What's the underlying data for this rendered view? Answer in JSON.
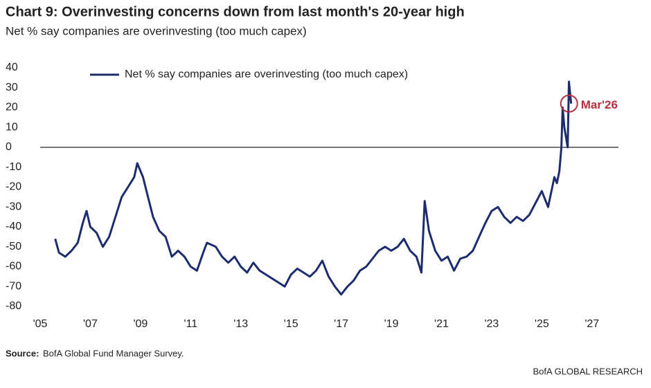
{
  "chart_data": {
    "type": "line",
    "title": "Chart 9: Overinvesting concerns down from last month's 20-year high",
    "subtitle": "Net % say companies are overinvesting (too much capex)",
    "source_label": "Source:",
    "source": "BofA Global Fund Manager Survey.",
    "branding": "BofA GLOBAL RESEARCH",
    "annotation": "Mar'26",
    "annotation_color": "#b5303f",
    "legend": "upper left",
    "xlim": [
      2005,
      2028
    ],
    "xticks": [
      {
        "value": 2005,
        "label": "'05"
      },
      {
        "value": 2007,
        "label": "'07"
      },
      {
        "value": 2009,
        "label": "'09"
      },
      {
        "value": 2011,
        "label": "'11"
      },
      {
        "value": 2013,
        "label": "'13"
      },
      {
        "value": 2015,
        "label": "'15"
      },
      {
        "value": 2017,
        "label": "'17"
      },
      {
        "value": 2019,
        "label": "'19"
      },
      {
        "value": 2021,
        "label": "'21"
      },
      {
        "value": 2023,
        "label": "'23"
      },
      {
        "value": 2025,
        "label": "'25"
      },
      {
        "value": 2027,
        "label": "'27"
      }
    ],
    "ylim": [
      -80,
      40
    ],
    "yticks": [
      -80,
      -70,
      -60,
      -50,
      -40,
      -30,
      -20,
      -10,
      0,
      10,
      20,
      30,
      40
    ],
    "x": [
      2005.6,
      2005.75,
      2006.0,
      2006.25,
      2006.5,
      2006.7,
      2006.85,
      2007.0,
      2007.25,
      2007.5,
      2007.75,
      2008.0,
      2008.25,
      2008.5,
      2008.75,
      2008.87,
      2009.1,
      2009.3,
      2009.5,
      2009.75,
      2010.0,
      2010.25,
      2010.5,
      2010.75,
      2011.0,
      2011.25,
      2011.5,
      2011.65,
      2012.0,
      2012.25,
      2012.5,
      2012.75,
      2013.0,
      2013.25,
      2013.5,
      2013.75,
      2014.0,
      2014.25,
      2014.5,
      2014.75,
      2015.0,
      2015.25,
      2015.5,
      2015.75,
      2016.0,
      2016.25,
      2016.5,
      2016.75,
      2017.0,
      2017.25,
      2017.5,
      2017.75,
      2018.0,
      2018.25,
      2018.5,
      2018.75,
      2019.0,
      2019.25,
      2019.5,
      2019.75,
      2020.0,
      2020.2,
      2020.33,
      2020.5,
      2020.75,
      2021.0,
      2021.25,
      2021.5,
      2021.75,
      2022.0,
      2022.25,
      2022.5,
      2022.75,
      2023.0,
      2023.25,
      2023.5,
      2023.75,
      2024.0,
      2024.25,
      2024.5,
      2024.75,
      2025.0,
      2025.25,
      2025.5,
      2025.6,
      2025.7,
      2025.78,
      2025.83,
      2025.9,
      2026.03,
      2026.08,
      2026.17
    ],
    "series": [
      {
        "name": "Net % say companies are overinvesting (too much capex)",
        "color": "#1c2c6e",
        "values": [
          -46,
          -53,
          -55,
          -52,
          -48,
          -38,
          -32,
          -40,
          -43,
          -50,
          -45,
          -35,
          -25,
          -20,
          -15,
          -8,
          -15,
          -25,
          -35,
          -42,
          -45,
          -55,
          -52,
          -55,
          -60,
          -62,
          -53,
          -48,
          -50,
          -55,
          -58,
          -55,
          -60,
          -63,
          -58,
          -62,
          -64,
          -66,
          -68,
          -70,
          -64,
          -61,
          -63,
          -65,
          -62,
          -57,
          -65,
          -70,
          -74,
          -70,
          -67,
          -62,
          -60,
          -56,
          -52,
          -50,
          -52,
          -50,
          -46,
          -52,
          -55,
          -63,
          -27,
          -42,
          -52,
          -57,
          -55,
          -62,
          -56,
          -55,
          -52,
          -45,
          -38,
          -32,
          -30,
          -35,
          -38,
          -35,
          -37,
          -34,
          -28,
          -22,
          -30,
          -15,
          -18,
          -12,
          0,
          20,
          10,
          0,
          33,
          22
        ]
      }
    ]
  }
}
